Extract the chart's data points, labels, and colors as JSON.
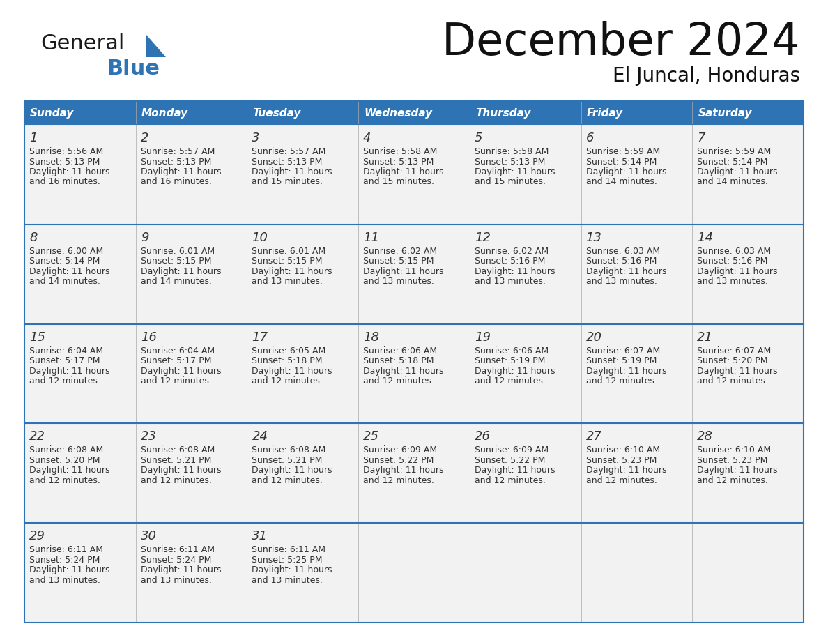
{
  "title": "December 2024",
  "subtitle": "El Juncal, Honduras",
  "header_color": "#2E74B5",
  "header_text_color": "#FFFFFF",
  "day_names": [
    "Sunday",
    "Monday",
    "Tuesday",
    "Wednesday",
    "Thursday",
    "Friday",
    "Saturday"
  ],
  "cell_bg_color": "#F2F2F2",
  "text_color": "#333333",
  "border_color": "#2E74B5",
  "logo_general_color": "#1a1a1a",
  "logo_blue_color": "#2E74B5",
  "logo_triangle_color": "#2E74B5",
  "days": [
    {
      "day": 1,
      "col": 0,
      "row": 0,
      "sunrise": "5:56 AM",
      "sunset": "5:13 PM",
      "daylight": "11 hours and 16 minutes."
    },
    {
      "day": 2,
      "col": 1,
      "row": 0,
      "sunrise": "5:57 AM",
      "sunset": "5:13 PM",
      "daylight": "11 hours and 16 minutes."
    },
    {
      "day": 3,
      "col": 2,
      "row": 0,
      "sunrise": "5:57 AM",
      "sunset": "5:13 PM",
      "daylight": "11 hours and 15 minutes."
    },
    {
      "day": 4,
      "col": 3,
      "row": 0,
      "sunrise": "5:58 AM",
      "sunset": "5:13 PM",
      "daylight": "11 hours and 15 minutes."
    },
    {
      "day": 5,
      "col": 4,
      "row": 0,
      "sunrise": "5:58 AM",
      "sunset": "5:13 PM",
      "daylight": "11 hours and 15 minutes."
    },
    {
      "day": 6,
      "col": 5,
      "row": 0,
      "sunrise": "5:59 AM",
      "sunset": "5:14 PM",
      "daylight": "11 hours and 14 minutes."
    },
    {
      "day": 7,
      "col": 6,
      "row": 0,
      "sunrise": "5:59 AM",
      "sunset": "5:14 PM",
      "daylight": "11 hours and 14 minutes."
    },
    {
      "day": 8,
      "col": 0,
      "row": 1,
      "sunrise": "6:00 AM",
      "sunset": "5:14 PM",
      "daylight": "11 hours and 14 minutes."
    },
    {
      "day": 9,
      "col": 1,
      "row": 1,
      "sunrise": "6:01 AM",
      "sunset": "5:15 PM",
      "daylight": "11 hours and 14 minutes."
    },
    {
      "day": 10,
      "col": 2,
      "row": 1,
      "sunrise": "6:01 AM",
      "sunset": "5:15 PM",
      "daylight": "11 hours and 13 minutes."
    },
    {
      "day": 11,
      "col": 3,
      "row": 1,
      "sunrise": "6:02 AM",
      "sunset": "5:15 PM",
      "daylight": "11 hours and 13 minutes."
    },
    {
      "day": 12,
      "col": 4,
      "row": 1,
      "sunrise": "6:02 AM",
      "sunset": "5:16 PM",
      "daylight": "11 hours and 13 minutes."
    },
    {
      "day": 13,
      "col": 5,
      "row": 1,
      "sunrise": "6:03 AM",
      "sunset": "5:16 PM",
      "daylight": "11 hours and 13 minutes."
    },
    {
      "day": 14,
      "col": 6,
      "row": 1,
      "sunrise": "6:03 AM",
      "sunset": "5:16 PM",
      "daylight": "11 hours and 13 minutes."
    },
    {
      "day": 15,
      "col": 0,
      "row": 2,
      "sunrise": "6:04 AM",
      "sunset": "5:17 PM",
      "daylight": "11 hours and 12 minutes."
    },
    {
      "day": 16,
      "col": 1,
      "row": 2,
      "sunrise": "6:04 AM",
      "sunset": "5:17 PM",
      "daylight": "11 hours and 12 minutes."
    },
    {
      "day": 17,
      "col": 2,
      "row": 2,
      "sunrise": "6:05 AM",
      "sunset": "5:18 PM",
      "daylight": "11 hours and 12 minutes."
    },
    {
      "day": 18,
      "col": 3,
      "row": 2,
      "sunrise": "6:06 AM",
      "sunset": "5:18 PM",
      "daylight": "11 hours and 12 minutes."
    },
    {
      "day": 19,
      "col": 4,
      "row": 2,
      "sunrise": "6:06 AM",
      "sunset": "5:19 PM",
      "daylight": "11 hours and 12 minutes."
    },
    {
      "day": 20,
      "col": 5,
      "row": 2,
      "sunrise": "6:07 AM",
      "sunset": "5:19 PM",
      "daylight": "11 hours and 12 minutes."
    },
    {
      "day": 21,
      "col": 6,
      "row": 2,
      "sunrise": "6:07 AM",
      "sunset": "5:20 PM",
      "daylight": "11 hours and 12 minutes."
    },
    {
      "day": 22,
      "col": 0,
      "row": 3,
      "sunrise": "6:08 AM",
      "sunset": "5:20 PM",
      "daylight": "11 hours and 12 minutes."
    },
    {
      "day": 23,
      "col": 1,
      "row": 3,
      "sunrise": "6:08 AM",
      "sunset": "5:21 PM",
      "daylight": "11 hours and 12 minutes."
    },
    {
      "day": 24,
      "col": 2,
      "row": 3,
      "sunrise": "6:08 AM",
      "sunset": "5:21 PM",
      "daylight": "11 hours and 12 minutes."
    },
    {
      "day": 25,
      "col": 3,
      "row": 3,
      "sunrise": "6:09 AM",
      "sunset": "5:22 PM",
      "daylight": "11 hours and 12 minutes."
    },
    {
      "day": 26,
      "col": 4,
      "row": 3,
      "sunrise": "6:09 AM",
      "sunset": "5:22 PM",
      "daylight": "11 hours and 12 minutes."
    },
    {
      "day": 27,
      "col": 5,
      "row": 3,
      "sunrise": "6:10 AM",
      "sunset": "5:23 PM",
      "daylight": "11 hours and 12 minutes."
    },
    {
      "day": 28,
      "col": 6,
      "row": 3,
      "sunrise": "6:10 AM",
      "sunset": "5:23 PM",
      "daylight": "11 hours and 12 minutes."
    },
    {
      "day": 29,
      "col": 0,
      "row": 4,
      "sunrise": "6:11 AM",
      "sunset": "5:24 PM",
      "daylight": "11 hours and 13 minutes."
    },
    {
      "day": 30,
      "col": 1,
      "row": 4,
      "sunrise": "6:11 AM",
      "sunset": "5:24 PM",
      "daylight": "11 hours and 13 minutes."
    },
    {
      "day": 31,
      "col": 2,
      "row": 4,
      "sunrise": "6:11 AM",
      "sunset": "5:25 PM",
      "daylight": "11 hours and 13 minutes."
    }
  ]
}
